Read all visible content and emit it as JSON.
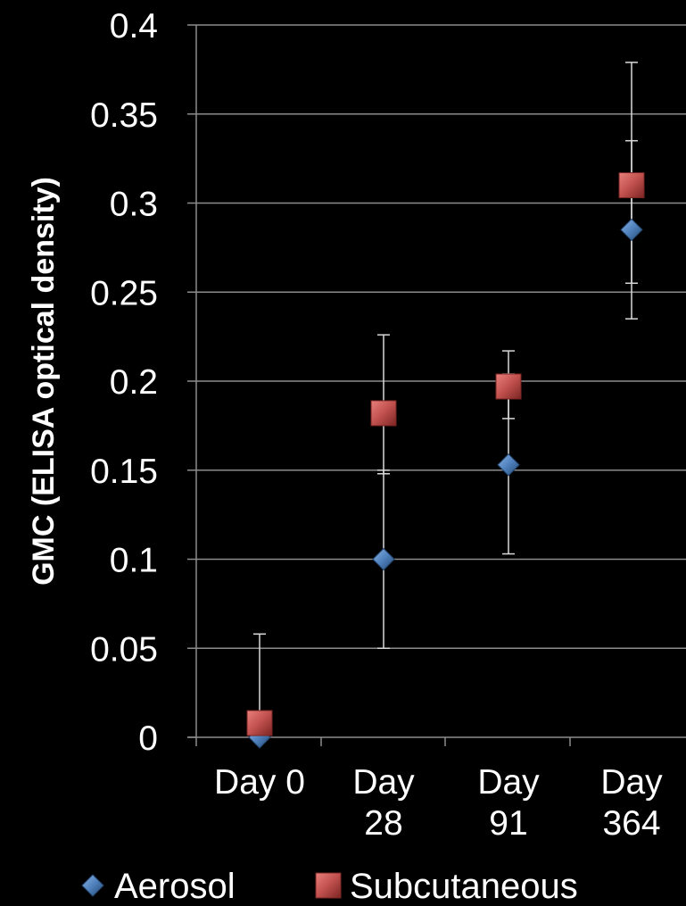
{
  "chart_data": {
    "type": "scatter",
    "title": "",
    "xlabel": "",
    "ylabel": "GMC (ELISA optical density)",
    "categories": [
      [
        "Day 0"
      ],
      [
        "Day",
        "28"
      ],
      [
        "Day",
        "91"
      ],
      [
        "Day",
        "364"
      ]
    ],
    "ylim": [
      0,
      0.4
    ],
    "yticks": [
      "0",
      "0.05",
      "0.1",
      "0.15",
      "0.2",
      "0.25",
      "0.3",
      "0.35",
      "0.4"
    ],
    "ytick_values": [
      0,
      0.05,
      0.1,
      0.15,
      0.2,
      0.25,
      0.3,
      0.35,
      0.4
    ],
    "grid": true,
    "legend_position": "bottom",
    "series": [
      {
        "name": "Aerosol",
        "marker": "diamond",
        "color": "#4f81bd",
        "points": [
          {
            "category": 0,
            "y": 0.0,
            "err_low": 0.0,
            "err_high": 0.0
          },
          {
            "category": 1,
            "y": 0.1,
            "err_low": 0.05,
            "err_high": 0.15
          },
          {
            "category": 2,
            "y": 0.153,
            "err_low": 0.103,
            "err_high": 0.204
          },
          {
            "category": 3,
            "y": 0.285,
            "err_low": 0.235,
            "err_high": 0.335
          }
        ]
      },
      {
        "name": "Subcutaneous",
        "marker": "square",
        "color": "#c0504d",
        "points": [
          {
            "category": 0,
            "y": 0.008,
            "err_low": 0.0,
            "err_high": 0.058
          },
          {
            "category": 1,
            "y": 0.182,
            "err_low": 0.148,
            "err_high": 0.226
          },
          {
            "category": 2,
            "y": 0.197,
            "err_low": 0.179,
            "err_high": 0.217
          },
          {
            "category": 3,
            "y": 0.31,
            "err_low": 0.255,
            "err_high": 0.379
          }
        ]
      }
    ]
  }
}
